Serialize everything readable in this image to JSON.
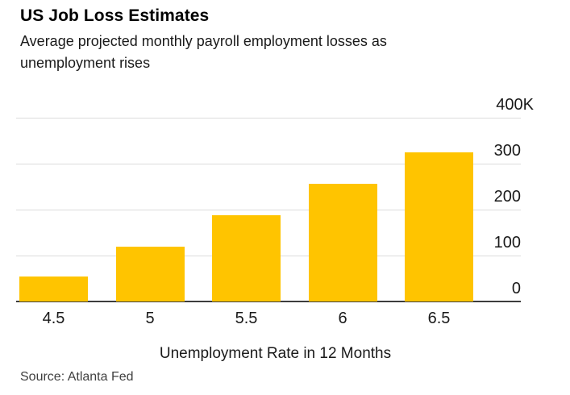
{
  "header": {
    "title": "US Job Loss Estimates",
    "subtitle": "Average projected monthly payroll employment losses as unemployment rises"
  },
  "source": "Source: Atlanta Fed",
  "colors": {
    "bar": "#FFC400",
    "gridline": "#DCDCDC",
    "baseline": "#3D3D3D",
    "text": "#1A1A1A",
    "background": "#FFFFFF"
  },
  "chart_data": {
    "type": "bar",
    "title": "US Job Loss Estimates",
    "subtitle": "Average projected monthly payroll employment losses as unemployment rises",
    "categories": [
      "4.5",
      "5",
      "5.5",
      "6",
      "6.5"
    ],
    "values": [
      54,
      120,
      187,
      257,
      324
    ],
    "values_unit": "thousands of jobs per month",
    "xlabel": "Unemployment Rate in 12 Months",
    "ylabel": "",
    "ylim": [
      0,
      400
    ],
    "yticks": [
      {
        "value": 0,
        "label": "0"
      },
      {
        "value": 100,
        "label": "100"
      },
      {
        "value": 200,
        "label": "200"
      },
      {
        "value": 300,
        "label": "300"
      },
      {
        "value": 400,
        "label": "400K"
      }
    ],
    "grid": true,
    "legend": null,
    "axis_side": "right",
    "bar_color": "#FFC400"
  }
}
